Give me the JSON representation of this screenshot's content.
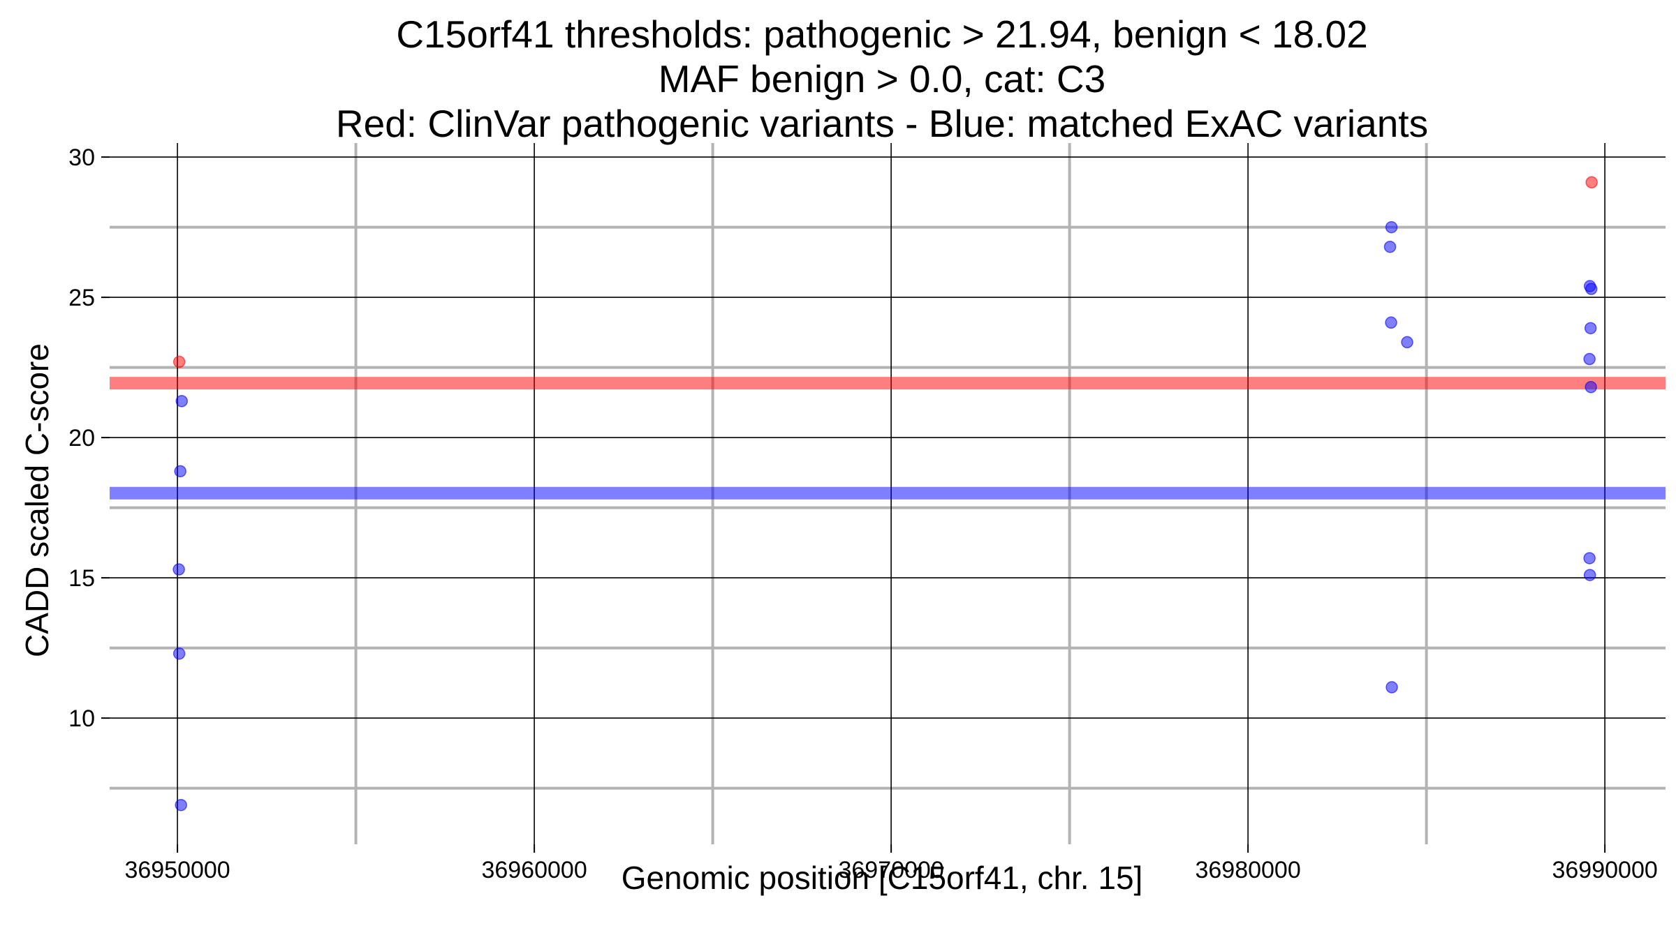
{
  "chart_data": {
    "type": "scatter",
    "title_lines": [
      "C15orf41 thresholds: pathogenic > 21.94, benign < 18.02",
      "MAF benign > 0.0, cat: C3",
      "Red: ClinVar pathogenic variants - Blue: matched ExAC variants"
    ],
    "xlabel": "Genomic position [C15orf41, chr. 15]",
    "ylabel": "CADD scaled C-score",
    "xlim": [
      36948100,
      36991700
    ],
    "ylim": [
      5.5,
      30.5
    ],
    "x_ticks": [
      36950000,
      36960000,
      36970000,
      36980000,
      36990000
    ],
    "x_tick_labels": [
      "36950000",
      "36960000",
      "36970000",
      "36980000",
      "36990000"
    ],
    "x_minor_ticks": [
      36955000,
      36965000,
      36975000,
      36985000
    ],
    "y_ticks": [
      10,
      15,
      20,
      25,
      30
    ],
    "y_tick_labels": [
      "10",
      "15",
      "20",
      "25",
      "30"
    ],
    "y_minor_ticks": [
      7.5,
      12.5,
      17.5,
      22.5,
      27.5
    ],
    "grid": true,
    "thresholds": [
      {
        "name": "pathogenic",
        "value": 21.94,
        "color": "#ff0000"
      },
      {
        "name": "benign",
        "value": 18.02,
        "color": "#0000ff"
      }
    ],
    "series": [
      {
        "color": "#ff0000",
        "points": [
          {
            "x": 36950050,
            "y": 22.7
          },
          {
            "x": 36989630,
            "y": 29.1
          }
        ]
      },
      {
        "color": "#0000ff",
        "points": [
          {
            "x": 36950120,
            "y": 21.3
          },
          {
            "x": 36950080,
            "y": 18.8
          },
          {
            "x": 36950040,
            "y": 15.3
          },
          {
            "x": 36950050,
            "y": 12.3
          },
          {
            "x": 36950100,
            "y": 6.9
          },
          {
            "x": 36984020,
            "y": 27.5
          },
          {
            "x": 36983980,
            "y": 26.8
          },
          {
            "x": 36984010,
            "y": 24.1
          },
          {
            "x": 36984460,
            "y": 23.4
          },
          {
            "x": 36989580,
            "y": 25.4
          },
          {
            "x": 36989620,
            "y": 25.3
          },
          {
            "x": 36989600,
            "y": 23.9
          },
          {
            "x": 36989570,
            "y": 22.8
          },
          {
            "x": 36989610,
            "y": 21.8
          },
          {
            "x": 36989570,
            "y": 15.7
          },
          {
            "x": 36989580,
            "y": 15.1
          },
          {
            "x": 36984030,
            "y": 11.1
          }
        ]
      }
    ]
  }
}
